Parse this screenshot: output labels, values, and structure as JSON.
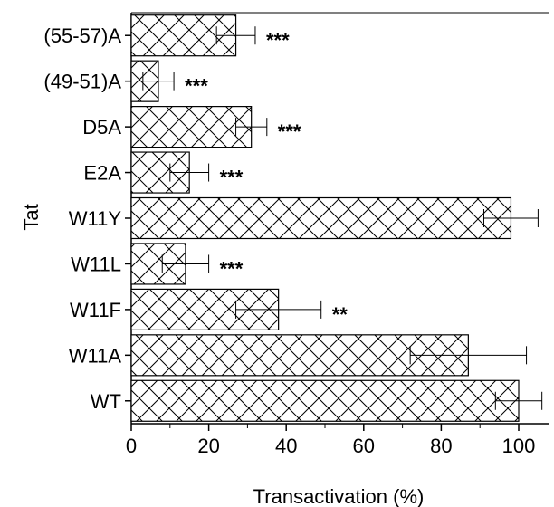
{
  "chart_data": {
    "type": "bar",
    "orientation": "horizontal",
    "xlabel": "Transactivation (%)",
    "ylabel": "Tat",
    "xlim": [
      0,
      105
    ],
    "xticks": [
      0,
      20,
      40,
      60,
      80,
      100
    ],
    "grid": false,
    "pattern": "crosshatch",
    "bar_color": "#000000",
    "categories": [
      "(55-57)A",
      "(49-51)A",
      "D5A",
      "E2A",
      "W11Y",
      "W11L",
      "W11F",
      "W11A",
      "WT"
    ],
    "values": [
      27,
      7,
      31,
      15,
      98,
      14,
      38,
      87,
      100
    ],
    "errors": [
      5,
      4,
      4,
      5,
      7,
      6,
      11,
      15,
      6
    ],
    "significance": [
      "***",
      "***",
      "***",
      "***",
      "",
      "***",
      "**",
      "",
      ""
    ]
  }
}
